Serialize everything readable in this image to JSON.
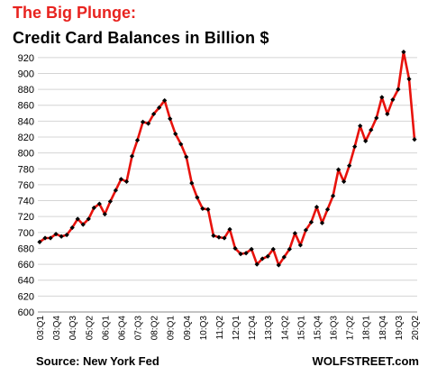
{
  "chart_data": {
    "type": "line",
    "title": "The Big Plunge:",
    "subtitle": "Credit Card Balances in Billion $",
    "xlabel": "",
    "ylabel": "",
    "ylim": [
      600,
      930
    ],
    "yticks": [
      600,
      620,
      640,
      660,
      680,
      700,
      720,
      740,
      760,
      780,
      800,
      820,
      840,
      860,
      880,
      900,
      920
    ],
    "xtick_labels": [
      "03:Q1",
      "03:Q4",
      "04:Q3",
      "05:Q2",
      "06:Q1",
      "06:Q4",
      "07:Q3",
      "08:Q2",
      "09:Q1",
      "09:Q4",
      "10:Q3",
      "11:Q2",
      "12:Q1",
      "12:Q4",
      "13:Q3",
      "14:Q2",
      "15:Q1",
      "15:Q4",
      "16:Q3",
      "17:Q2",
      "18:Q1",
      "18:Q4",
      "19:Q3",
      "20:Q2"
    ],
    "x": [
      "03:Q1",
      "03:Q2",
      "03:Q3",
      "03:Q4",
      "04:Q1",
      "04:Q2",
      "04:Q3",
      "04:Q4",
      "05:Q1",
      "05:Q2",
      "05:Q3",
      "05:Q4",
      "06:Q1",
      "06:Q2",
      "06:Q3",
      "06:Q4",
      "07:Q1",
      "07:Q2",
      "07:Q3",
      "07:Q4",
      "08:Q1",
      "08:Q2",
      "08:Q3",
      "08:Q4",
      "09:Q1",
      "09:Q2",
      "09:Q3",
      "09:Q4",
      "10:Q1",
      "10:Q2",
      "10:Q3",
      "10:Q4",
      "11:Q1",
      "11:Q2",
      "11:Q3",
      "11:Q4",
      "12:Q1",
      "12:Q2",
      "12:Q3",
      "12:Q4",
      "13:Q1",
      "13:Q2",
      "13:Q3",
      "13:Q4",
      "14:Q1",
      "14:Q2",
      "14:Q3",
      "14:Q4",
      "15:Q1",
      "15:Q2",
      "15:Q3",
      "15:Q4",
      "16:Q1",
      "16:Q2",
      "16:Q3",
      "16:Q4",
      "17:Q1",
      "17:Q2",
      "17:Q3",
      "17:Q4",
      "18:Q1",
      "18:Q2",
      "18:Q3",
      "18:Q4",
      "19:Q1",
      "19:Q2",
      "19:Q3",
      "19:Q4",
      "20:Q1",
      "20:Q2"
    ],
    "series": [
      {
        "values": [
          688,
          693,
          693,
          698,
          695,
          697,
          706,
          717,
          710,
          717,
          731,
          736,
          723,
          739,
          753,
          767,
          764,
          796,
          816,
          839,
          837,
          849,
          857,
          866,
          843,
          824,
          811,
          795,
          762,
          744,
          730,
          729,
          696,
          694,
          693,
          704,
          680,
          673,
          674,
          679,
          660,
          667,
          670,
          679,
          659,
          669,
          679,
          699,
          684,
          703,
          713,
          732,
          712,
          729,
          746,
          779,
          764,
          784,
          808,
          834,
          815,
          829,
          844,
          870,
          849,
          867,
          880,
          927,
          893,
          817
        ]
      }
    ],
    "grid": true,
    "line_color": "#e8120c",
    "marker_color": "#000000",
    "source": "Source: New York Fed",
    "brand": "WOLFSTREET.com"
  }
}
